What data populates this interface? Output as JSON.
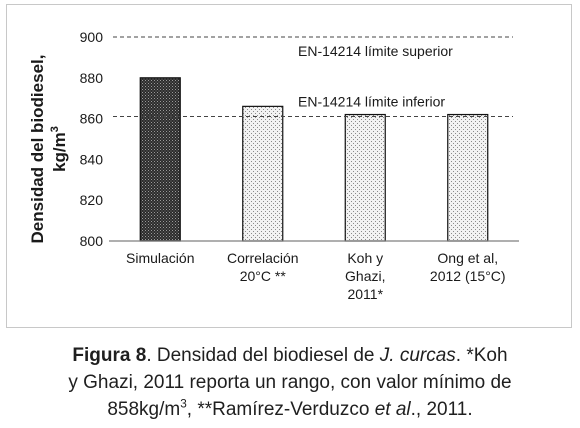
{
  "chart_data": {
    "type": "bar",
    "categories": [
      [
        "Simulación"
      ],
      [
        "Correlación",
        "20°C **"
      ],
      [
        "Koh y",
        "Ghazi,",
        "2011*"
      ],
      [
        "Ong et al,",
        "2012 (15°C)"
      ]
    ],
    "values": [
      880,
      866,
      862,
      862
    ],
    "bar_patterns": [
      "dense-dark",
      "dotted-light",
      "dotted-light",
      "dotted-light"
    ],
    "ylabel_line1": "Densidad del biodiesel,",
    "ylabel_line2_base": "kg/m",
    "ylabel_line2_sup": "3",
    "ylim": [
      800,
      900
    ],
    "yticks": [
      800,
      820,
      840,
      860,
      880,
      900
    ],
    "reference_lines": [
      {
        "value": 900,
        "label": "EN-14214 límite superior"
      },
      {
        "value": 861,
        "label": "EN-14214 límite inferior"
      }
    ],
    "grid": false
  },
  "caption": {
    "fig_label": "Figura 8",
    "line1_a": ". Densidad del biodiesel de ",
    "species": "J. curcas",
    "line1_b": ". *Koh",
    "line2": "y Ghazi, 2011 reporta un rango, con valor mínimo de",
    "line3_a": "858kg/m",
    "line3_sup": "3",
    "line3_b": ", **Ramírez-Verduzco ",
    "etal": "et al",
    "line3_c": "., 2011."
  },
  "colors": {
    "axis": "#7f7f7f",
    "dark_bar_fill": "#3a3a3a",
    "light_bar_fill": "#ebebeb",
    "bar_outline": "#111111",
    "reference_line": "#444444"
  }
}
